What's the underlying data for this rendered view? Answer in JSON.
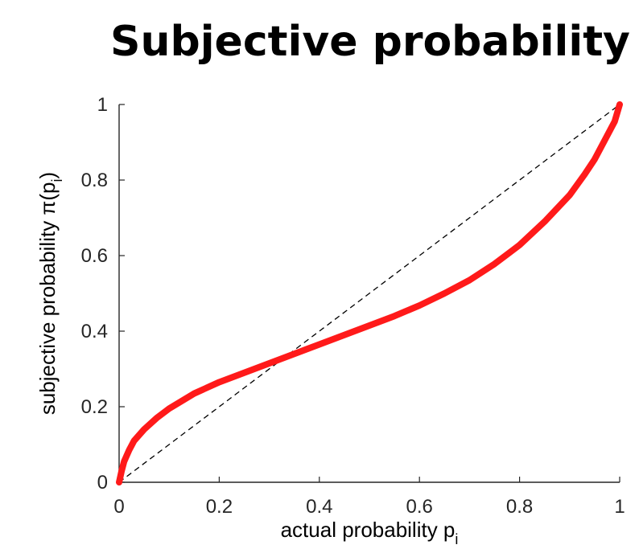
{
  "title": "Subjective probability",
  "chart_data": {
    "type": "line",
    "title": "Subjective probability",
    "xlabel": "actual probability p",
    "xlabel_subscript": "i",
    "ylabel": "subjective probability π(p",
    "ylabel_subscript": "i",
    "ylabel_suffix": ")",
    "xlim": [
      0,
      1
    ],
    "ylim": [
      0,
      1
    ],
    "xticks": [
      "0",
      "0.2",
      "0.4",
      "0.6",
      "0.8",
      "1"
    ],
    "yticks": [
      "0",
      "0.2",
      "0.4",
      "0.6",
      "0.8",
      "1"
    ],
    "grid": false,
    "series": [
      {
        "color": "#ff1a1a",
        "style": "solid",
        "x": [
          0,
          0.005,
          0.01,
          0.02,
          0.03,
          0.05,
          0.075,
          0.1,
          0.15,
          0.2,
          0.25,
          0.3,
          0.35,
          0.4,
          0.45,
          0.5,
          0.55,
          0.6,
          0.65,
          0.7,
          0.75,
          0.8,
          0.85,
          0.9,
          0.93,
          0.95,
          0.97,
          0.98,
          0.99,
          1.0
        ],
        "y": [
          0,
          0.03,
          0.055,
          0.085,
          0.11,
          0.14,
          0.17,
          0.195,
          0.235,
          0.265,
          0.29,
          0.315,
          0.34,
          0.365,
          0.39,
          0.415,
          0.44,
          0.468,
          0.5,
          0.535,
          0.578,
          0.628,
          0.69,
          0.76,
          0.815,
          0.855,
          0.905,
          0.93,
          0.955,
          1.0
        ]
      },
      {
        "color": "#000000",
        "style": "dashed",
        "x": [
          0,
          1
        ],
        "y": [
          0,
          1
        ]
      }
    ]
  }
}
